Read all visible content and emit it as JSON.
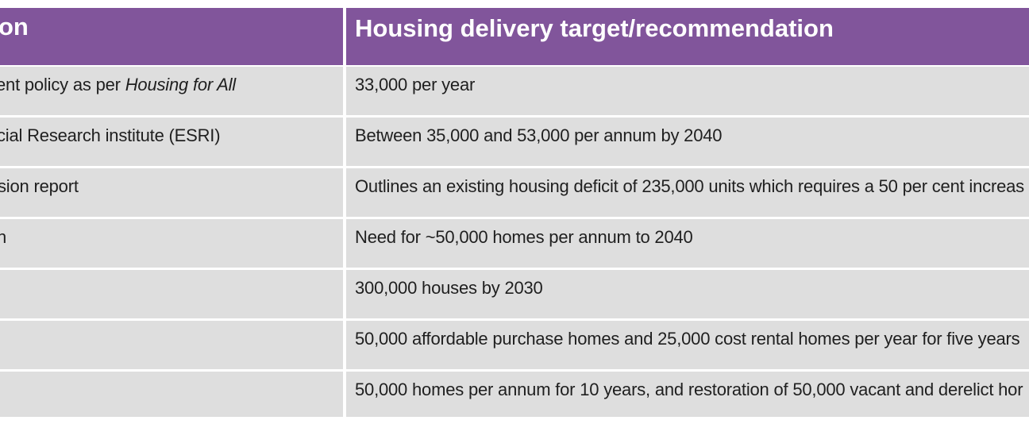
{
  "table": {
    "headers": {
      "col1": "on",
      "col2": "Housing delivery target/recommendation"
    },
    "rows": [
      {
        "col1": "ent policy as per ",
        "col1_italic": "Housing for All",
        "col2": "33,000 per year"
      },
      {
        "col1": "cial Research institute (ESRI)",
        "col1_italic": "",
        "col2": "Between 35,000 and 53,000 per annum by 2040"
      },
      {
        "col1": "sion report",
        "col1_italic": "",
        "col2": "Outlines an existing housing deficit of 235,000 units which requires a 50 per cent increas"
      },
      {
        "col1": "n",
        "col1_italic": "",
        "col2": "Need for ~50,000 homes per annum to 2040"
      },
      {
        "col1": "",
        "col1_italic": "",
        "col2": "300,000 houses by 2030"
      },
      {
        "col1": "",
        "col1_italic": "",
        "col2": "50,000 affordable purchase homes and 25,000 cost rental homes per year for five years"
      },
      {
        "col1": "",
        "col1_italic": "",
        "col2": "50,000 homes per annum for 10 years, and restoration of 50,000 vacant and derelict hor"
      }
    ]
  },
  "colors": {
    "header_bg": "#81559b",
    "header_text": "#ffffff",
    "row_bg": "#dedede",
    "text": "#1f1f1f"
  }
}
